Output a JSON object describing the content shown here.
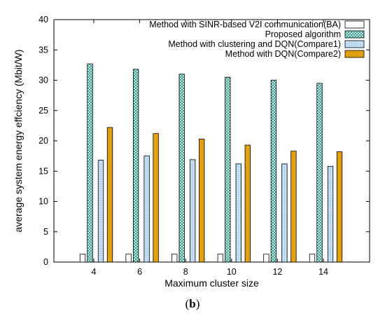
{
  "caption": {
    "open": "(",
    "letter": "b",
    "close": ")"
  },
  "chart_data": {
    "type": "bar",
    "xlabel": "Maximum cluster size",
    "ylabel": "average system energy effciency (Mbit/W)",
    "ylim": [
      0,
      40
    ],
    "yticks": [
      0,
      5,
      10,
      15,
      20,
      25,
      30,
      35,
      40
    ],
    "categories": [
      "4",
      "6",
      "8",
      "10",
      "12",
      "14"
    ],
    "legend_position": "top-right",
    "grid": false,
    "series": [
      {
        "name": "Method with SINR-based V2I communication(BA)",
        "values": [
          1.3,
          1.3,
          1.3,
          1.3,
          1.3,
          1.3
        ],
        "color": "#ffffff",
        "pattern": "none"
      },
      {
        "name": "Proposed algorithm",
        "values": [
          32.7,
          31.8,
          31.0,
          30.5,
          30.0,
          29.5
        ],
        "color": "#2a9a8a",
        "pattern": "crosshatch"
      },
      {
        "name": "Method with clustering and DQN(Compare1)",
        "values": [
          16.8,
          17.5,
          16.9,
          16.2,
          16.2,
          15.8
        ],
        "color": "#c5e0f5",
        "pattern": "dots"
      },
      {
        "name": "Method with DQN(Compare2)",
        "values": [
          22.2,
          21.2,
          20.3,
          19.3,
          18.3,
          18.2
        ],
        "color": "#e0a010",
        "pattern": "none"
      }
    ]
  }
}
